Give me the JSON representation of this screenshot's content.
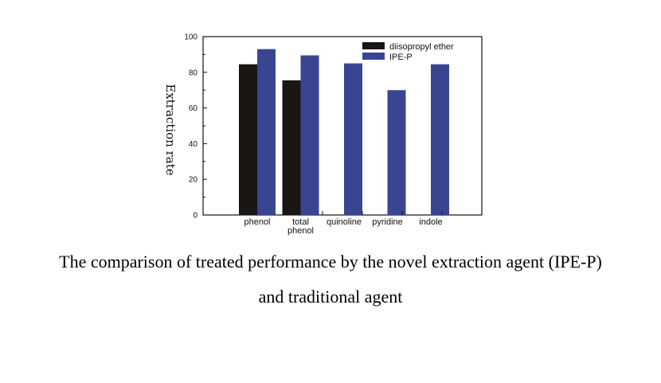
{
  "chart_data": {
    "type": "bar",
    "categories": [
      "phenol",
      "total\nphenol",
      "quinoline",
      "pyridine",
      "indole"
    ],
    "series": [
      {
        "name": "diisopropyl ether",
        "color": "#1a1614",
        "values": [
          84.5,
          75.5,
          null,
          null,
          null
        ]
      },
      {
        "name": "IPE-P",
        "color": "#3a4592",
        "values": [
          93,
          89.5,
          85,
          70,
          84.5
        ]
      }
    ],
    "ylabel": "Extraction rate",
    "xlabel": "",
    "ylim": [
      0,
      100
    ],
    "yticks": [
      0,
      20,
      40,
      60,
      80,
      100
    ],
    "legend": "top-right",
    "grid": false
  },
  "caption": {
    "line1": "The comparison of treated performance by the novel extraction agent (IPE-P)",
    "line2": "and traditional agent"
  }
}
